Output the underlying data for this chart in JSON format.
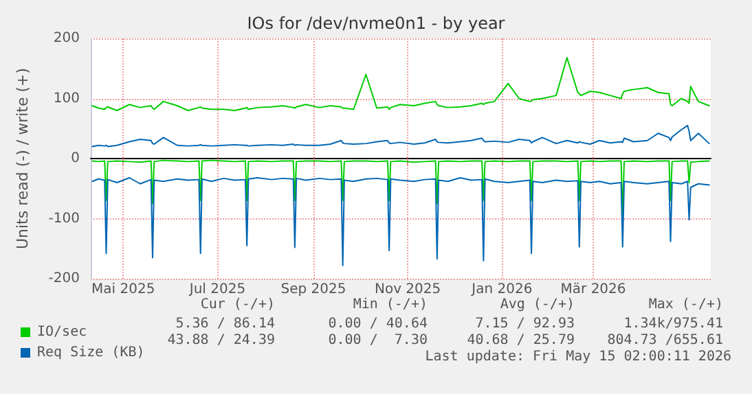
{
  "chart_data": {
    "type": "line",
    "title": "IOs for /dev/nvme0n1 - by year",
    "ylabel": "Units read (-) / write (+)",
    "x": [
      "2025-04-11",
      "2025-04-15",
      "2025-04-19",
      "2025-04-20",
      "2025-04-21",
      "2025-04-27",
      "2025-05-05",
      "2025-05-12",
      "2025-05-19",
      "2025-05-20",
      "2025-05-21",
      "2025-05-27",
      "2025-06-05",
      "2025-06-12",
      "2025-06-19",
      "2025-06-20",
      "2025-06-21",
      "2025-06-27",
      "2025-07-05",
      "2025-07-12",
      "2025-07-19",
      "2025-07-20",
      "2025-07-21",
      "2025-07-27",
      "2025-08-05",
      "2025-08-12",
      "2025-08-19",
      "2025-08-20",
      "2025-08-21",
      "2025-08-27",
      "2025-09-05",
      "2025-09-12",
      "2025-09-19",
      "2025-09-20",
      "2025-09-21",
      "2025-09-27",
      "2025-10-05",
      "2025-10-12",
      "2025-10-19",
      "2025-10-20",
      "2025-10-21",
      "2025-10-27",
      "2025-11-05",
      "2025-11-12",
      "2025-11-19",
      "2025-11-20",
      "2025-11-21",
      "2025-11-27",
      "2025-12-05",
      "2025-12-12",
      "2025-12-19",
      "2025-12-20",
      "2025-12-21",
      "2025-12-27",
      "2026-01-05",
      "2026-01-12",
      "2026-01-19",
      "2026-01-20",
      "2026-01-21",
      "2026-01-27",
      "2026-02-05",
      "2026-02-12",
      "2026-02-19",
      "2026-02-20",
      "2026-02-21",
      "2026-02-27",
      "2026-03-05",
      "2026-03-12",
      "2026-03-19",
      "2026-03-20",
      "2026-03-21",
      "2026-03-27",
      "2026-04-05",
      "2026-04-12",
      "2026-04-19",
      "2026-04-20",
      "2026-04-21",
      "2026-04-27",
      "2026-05-01",
      "2026-05-02",
      "2026-05-03",
      "2026-05-08",
      "2026-05-15"
    ],
    "series": [
      {
        "name": "IO/sec",
        "color": "#00cc00",
        "values": [
          88,
          84,
          82,
          85,
          86,
          80,
          90,
          85,
          88,
          84,
          82,
          95,
          88,
          80,
          85,
          86,
          84,
          82,
          82,
          80,
          84,
          85,
          82,
          85,
          86,
          88,
          85,
          84,
          86,
          90,
          85,
          88,
          86,
          84,
          84,
          82,
          140,
          84,
          86,
          82,
          85,
          90,
          88,
          92,
          95,
          90,
          88,
          85,
          86,
          88,
          92,
          90,
          92,
          95,
          125,
          100,
          95,
          96,
          98,
          100,
          105,
          168,
          110,
          108,
          105,
          112,
          110,
          105,
          100,
          108,
          112,
          115,
          118,
          110,
          108,
          90,
          88,
          100,
          95,
          92,
          120,
          95,
          88
        ]
      },
      {
        "color": "#00cc00",
        "values": [
          -4,
          -5,
          -4,
          -70,
          -5,
          -4,
          -5,
          -6,
          -4,
          -75,
          -5,
          -3,
          -4,
          -5,
          -4,
          -70,
          -4,
          -3,
          -4,
          -5,
          -4,
          -70,
          -5,
          -4,
          -5,
          -4,
          -4,
          -70,
          -5,
          -4,
          -4,
          -5,
          -4,
          -70,
          -5,
          -4,
          -4,
          -5,
          -4,
          -70,
          -5,
          -4,
          -6,
          -5,
          -4,
          -75,
          -5,
          -4,
          -5,
          -4,
          -4,
          -70,
          -5,
          -4,
          -5,
          -4,
          -4,
          -70,
          -5,
          -4,
          -4,
          -5,
          -4,
          -70,
          -5,
          -4,
          -5,
          -4,
          -4,
          -93,
          -5,
          -4,
          -5,
          -4,
          -4,
          -70,
          -5,
          -4,
          -4,
          -40,
          -6,
          -5,
          -4
        ]
      },
      {
        "name": "Req Size (KB)",
        "color": "#0066b3",
        "values": [
          20,
          22,
          21,
          22,
          20,
          22,
          28,
          32,
          30,
          25,
          24,
          35,
          22,
          21,
          22,
          23,
          22,
          21,
          22,
          23,
          22,
          22,
          21,
          22,
          23,
          22,
          24,
          22,
          23,
          22,
          22,
          24,
          30,
          26,
          25,
          24,
          25,
          28,
          30,
          26,
          25,
          27,
          24,
          26,
          32,
          28,
          27,
          26,
          28,
          30,
          34,
          30,
          28,
          29,
          27,
          32,
          30,
          26,
          28,
          35,
          25,
          30,
          26,
          28,
          27,
          24,
          30,
          26,
          28,
          27,
          34,
          28,
          30,
          42,
          35,
          30,
          36,
          48,
          55,
          45,
          30,
          42,
          25
        ]
      },
      {
        "color": "#0066b3",
        "values": [
          -38,
          -34,
          -36,
          -158,
          -35,
          -40,
          -32,
          -42,
          -35,
          -165,
          -36,
          -38,
          -34,
          -36,
          -35,
          -158,
          -34,
          -38,
          -33,
          -36,
          -35,
          -145,
          -34,
          -32,
          -35,
          -33,
          -34,
          -148,
          -33,
          -36,
          -33,
          -35,
          -34,
          -178,
          -36,
          -38,
          -34,
          -33,
          -35,
          -153,
          -34,
          -36,
          -38,
          -35,
          -34,
          -167,
          -36,
          -38,
          -32,
          -36,
          -35,
          -170,
          -34,
          -38,
          -40,
          -38,
          -36,
          -158,
          -38,
          -40,
          -36,
          -38,
          -37,
          -147,
          -38,
          -40,
          -38,
          -42,
          -40,
          -147,
          -38,
          -40,
          -42,
          -40,
          -38,
          -138,
          -40,
          -42,
          -38,
          -102,
          -48,
          -42,
          -44
        ]
      }
    ],
    "xlim": [
      "2025-04-10",
      "2026-05-16"
    ],
    "xticks": [
      {
        "value": "2025-05-01",
        "label": "Mai 2025"
      },
      {
        "value": "2025-07-01",
        "label": "Jul 2025"
      },
      {
        "value": "2025-09-01",
        "label": "Sep 2025"
      },
      {
        "value": "2025-11-01",
        "label": "Nov 2025"
      },
      {
        "value": "2026-01-01",
        "label": "Jan 2026"
      },
      {
        "value": "2026-03-01",
        "label": "Mär 2026"
      }
    ],
    "ylim": [
      -200,
      200
    ],
    "yticks": [
      -200,
      -100,
      0,
      100,
      200
    ],
    "grid": true,
    "legend": "bottom left",
    "marker": "none",
    "line_style": "solid",
    "annotations": [
      "Cur (-/+)",
      "Min (-/+)",
      "Avg (-/+)",
      "Max (-/+)",
      "5.36 / 86.14",
      "0.00 / 40.64",
      "7.15 / 92.93",
      "1.34k/975.41",
      "43.88 / 24.39",
      "0.00 /  7.30",
      "40.68 / 25.79",
      "804.73 /655.61",
      "Last update: Fri May 15 02:00:11 2026"
    ]
  }
}
